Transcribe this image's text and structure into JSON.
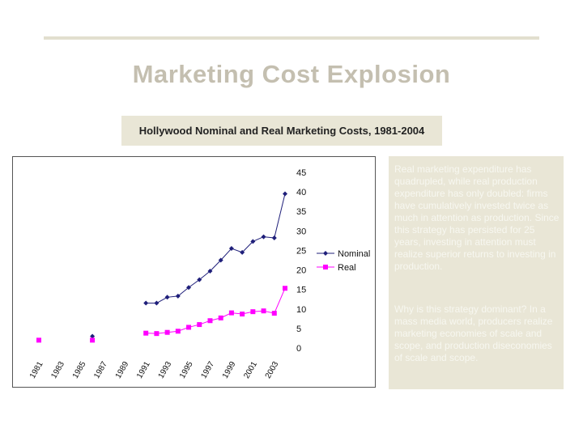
{
  "slide": {
    "title": "Marketing Cost Explosion",
    "subtitle": "Hollywood Nominal and Real Marketing Costs, 1981-2004",
    "notes": [
      "Real marketing expenditure has quadrupled, while real production expenditure has only doubled: firms have cumulatively invested twice as much in attention as production. Since this strategy has persisted for 25 years, investing in attention must realize superior returns to investing in production.",
      "Why is this strategy dominant? In a mass media world, producers realize marketing economies of scale and scope, and production diseconomies of scale and scope."
    ]
  },
  "chart_data": {
    "type": "line",
    "x": [
      1981,
      1983,
      1985,
      1987,
      1989,
      1991,
      1992,
      1993,
      1994,
      1995,
      1996,
      1997,
      1998,
      1999,
      2000,
      2001,
      2002,
      2003,
      2004
    ],
    "x_tick_labels": [
      "1981",
      "1983",
      "1985",
      "1987",
      "1989",
      "1991",
      "1993",
      "1995",
      "1997",
      "1999",
      "2001",
      "2003"
    ],
    "ylim": [
      0,
      45
    ],
    "y_ticks": [
      0,
      5,
      10,
      15,
      20,
      25,
      30,
      35,
      40,
      45
    ],
    "y_axis_side": "right",
    "legend_position": "right",
    "series": [
      {
        "name": "Nominal",
        "color": "#1f1f7a",
        "marker": "diamond",
        "points": [
          [
            1986,
            3
          ],
          [
            1991,
            11.5
          ],
          [
            1992,
            11.5
          ],
          [
            1993,
            13
          ],
          [
            1994,
            13.3
          ],
          [
            1995,
            15.5
          ],
          [
            1996,
            17.5
          ],
          [
            1997,
            19.7
          ],
          [
            1998,
            22.5
          ],
          [
            1999,
            25.5
          ],
          [
            2000,
            24.5
          ],
          [
            2001,
            27.3
          ],
          [
            2002,
            28.5
          ],
          [
            2003,
            28.2
          ],
          [
            2004,
            39.5
          ]
        ]
      },
      {
        "name": "Real",
        "color": "#ff00ff",
        "marker": "square",
        "points": [
          [
            1981,
            2
          ],
          [
            1986,
            2
          ],
          [
            1991,
            3.8
          ],
          [
            1992,
            3.7
          ],
          [
            1993,
            4
          ],
          [
            1994,
            4.3
          ],
          [
            1995,
            5.3
          ],
          [
            1996,
            6
          ],
          [
            1997,
            7
          ],
          [
            1998,
            7.7
          ],
          [
            1999,
            9
          ],
          [
            2000,
            8.7
          ],
          [
            2001,
            9.3
          ],
          [
            2002,
            9.5
          ],
          [
            2003,
            8.9
          ],
          [
            2004,
            15.3
          ]
        ]
      }
    ]
  }
}
